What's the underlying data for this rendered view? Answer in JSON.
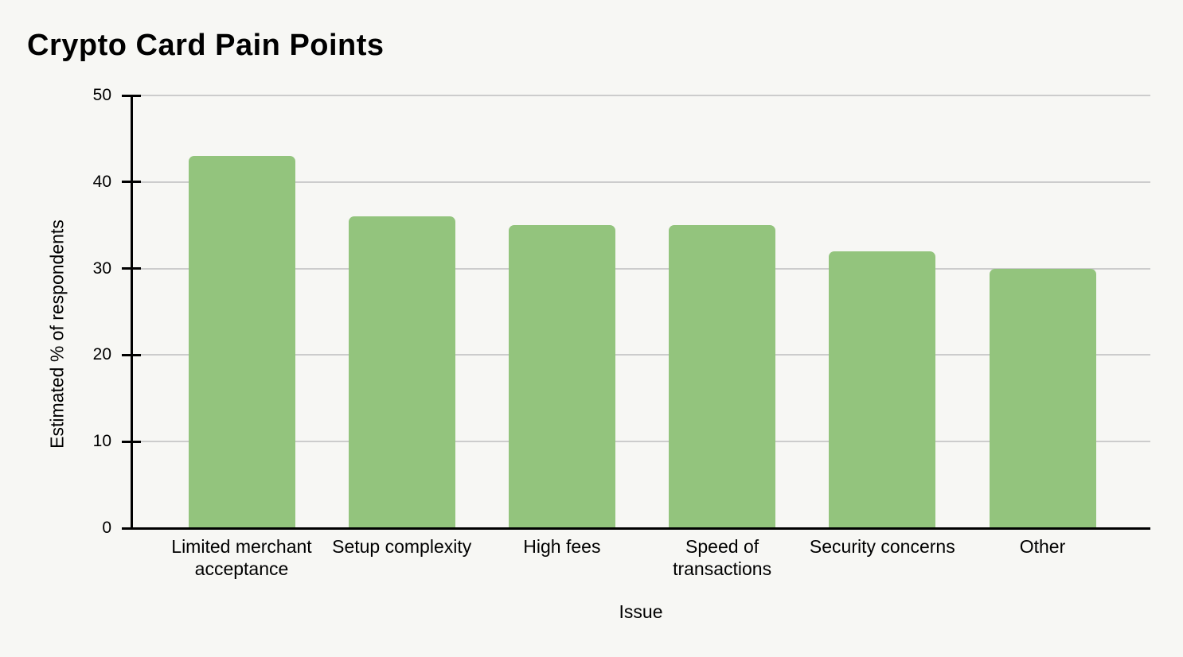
{
  "chart_data": {
    "type": "bar",
    "title": "Crypto Card Pain Points",
    "xlabel": "Issue",
    "ylabel": "Estimated % of respondents",
    "categories": [
      "Limited merchant acceptance",
      "Setup complexity",
      "High fees",
      "Speed of transactions",
      "Security concerns",
      "Other"
    ],
    "values": [
      43,
      36,
      35,
      35,
      32,
      30
    ],
    "ylim": [
      0,
      50
    ],
    "yticks": [
      0,
      10,
      20,
      30,
      40,
      50
    ],
    "grid": true,
    "legend": "none",
    "colors": {
      "bar": "#93c47d",
      "background": "#f7f7f4",
      "gridline": "#cccccc",
      "axis": "#000000",
      "text": "#000000"
    }
  }
}
